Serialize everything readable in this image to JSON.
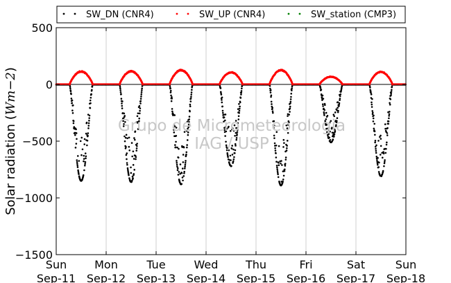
{
  "chart_data": {
    "type": "scatter",
    "title": "",
    "ylabel_prefix": "Solar radiation (",
    "ylabel_unit": "Wm−2",
    "ylabel_suffix": ")",
    "ylim": [
      -1500,
      500
    ],
    "yticks": [
      500,
      0,
      -500,
      -1000,
      -1500
    ],
    "ytick_labels": [
      "500",
      "0",
      "−500",
      "−1000",
      "−1500"
    ],
    "x_days": [
      "Sun",
      "Mon",
      "Tue",
      "Wed",
      "Thu",
      "Fri",
      "Sat",
      "Sun"
    ],
    "x_dates": [
      "Sep-11",
      "Sep-12",
      "Sep-13",
      "Sep-14",
      "Sep-15",
      "Sep-16",
      "Sep-17",
      "Sep-18"
    ],
    "x_grid": true,
    "legend": {
      "placement": "top",
      "entries": [
        {
          "name": "SW_DN (CNR4)",
          "color": "#000000"
        },
        {
          "name": "SW_UP (CNR4)",
          "color": "#ff0000"
        },
        {
          "name": "SW_station (CMP3)",
          "color": "#008000"
        }
      ]
    },
    "series": [
      {
        "name": "SW_DN (CNR4)",
        "color": "#000000",
        "daily_minimum": [
          {
            "date": "Sep-11",
            "value": -850
          },
          {
            "date": "Sep-12",
            "value": -860
          },
          {
            "date": "Sep-13",
            "value": -880
          },
          {
            "date": "Sep-14",
            "value": -720
          },
          {
            "date": "Sep-15",
            "value": -890
          },
          {
            "date": "Sep-16",
            "value": -510
          },
          {
            "date": "Sep-17",
            "value": -810
          }
        ]
      },
      {
        "name": "SW_UP (CNR4)",
        "color": "#ff0000",
        "daily_maximum": [
          {
            "date": "Sep-11",
            "value": 118
          },
          {
            "date": "Sep-12",
            "value": 120
          },
          {
            "date": "Sep-13",
            "value": 130
          },
          {
            "date": "Sep-14",
            "value": 110
          },
          {
            "date": "Sep-15",
            "value": 130
          },
          {
            "date": "Sep-16",
            "value": 70
          },
          {
            "date": "Sep-17",
            "value": 115
          }
        ]
      },
      {
        "name": "SW_station (CMP3)",
        "color": "#008000",
        "daily_maximum": []
      }
    ],
    "watermark": [
      "Grupo de Micrometeorologia",
      "IAG / USP"
    ]
  }
}
